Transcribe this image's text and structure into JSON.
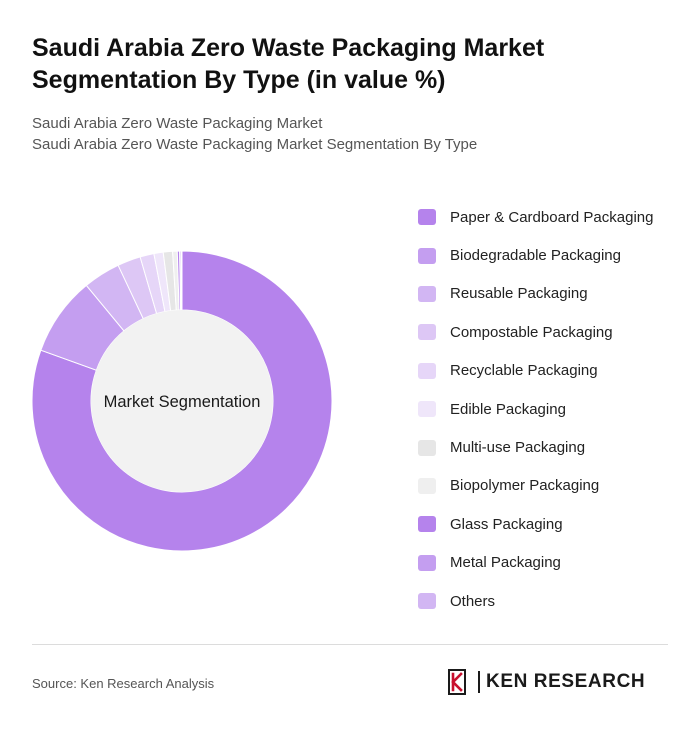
{
  "header": {
    "title": "Saudi Arabia Zero Waste Packaging Market Segmentation By Type (in value %)",
    "subtitle_line1": "Saudi Arabia Zero Waste Packaging Market",
    "subtitle_line2": "Saudi Arabia Zero Waste Packaging Market Segmentation By Type"
  },
  "chart_data": {
    "type": "pie",
    "variant": "donut",
    "center_label": "Market Segmentation",
    "legend_position": "right",
    "categories": [
      "Paper & Cardboard Packaging",
      "Biodegradable Packaging",
      "Reusable Packaging",
      "Compostable Packaging",
      "Recyclable Packaging",
      "Edible Packaging",
      "Multi-use Packaging",
      "Biopolymer Packaging",
      "Glass Packaging",
      "Metal Packaging",
      "Others"
    ],
    "values": [
      80.5,
      8.5,
      4.0,
      2.5,
      1.5,
      1.0,
      1.0,
      0.5,
      0.25,
      0.15,
      0.1
    ],
    "colors": [
      "#b583ec",
      "#c49ef0",
      "#d2b6f3",
      "#ddc7f5",
      "#e6d6f8",
      "#efe6fa",
      "#e6e6e6",
      "#efefef",
      "#b583ec",
      "#c49ef0",
      "#d2b6f3"
    ]
  },
  "footer": {
    "source": "Source: Ken Research Analysis",
    "brand": "KEN RESEARCH"
  }
}
